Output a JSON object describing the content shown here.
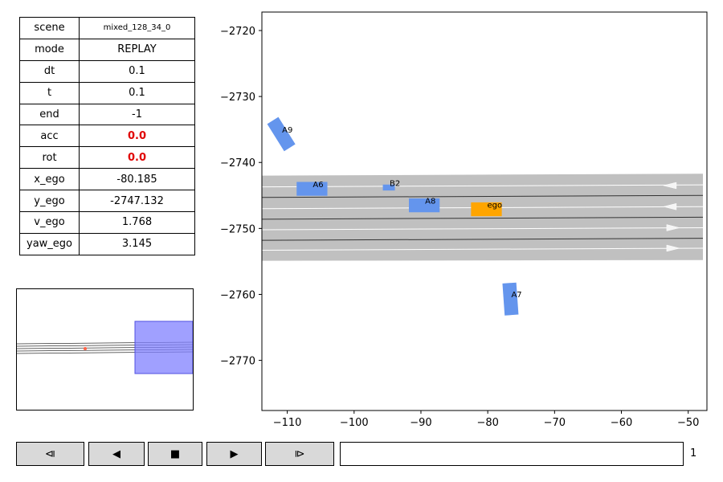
{
  "info_table": [
    {
      "key": "scene",
      "value": "mixed_128_34_0",
      "style": "small"
    },
    {
      "key": "mode",
      "value": "REPLAY",
      "style": ""
    },
    {
      "key": "dt",
      "value": "0.1",
      "style": ""
    },
    {
      "key": "t",
      "value": "0.1",
      "style": ""
    },
    {
      "key": "end",
      "value": "-1",
      "style": ""
    },
    {
      "key": "acc",
      "value": "0.0",
      "style": "red"
    },
    {
      "key": "rot",
      "value": "0.0",
      "style": "red"
    },
    {
      "key": "x_ego",
      "value": "-80.185",
      "style": ""
    },
    {
      "key": "y_ego",
      "value": "-2747.132",
      "style": ""
    },
    {
      "key": "v_ego",
      "value": "1.768",
      "style": ""
    },
    {
      "key": "yaw_ego",
      "value": "3.145",
      "style": ""
    }
  ],
  "plot": {
    "xlim": [
      -113.8,
      -47.2
    ],
    "ylim": [
      -2717.2,
      -2777.6
    ],
    "x_ticks": [
      -110,
      -100,
      -90,
      -80,
      -70,
      -60,
      -50
    ],
    "y_ticks": [
      -2720,
      -2730,
      -2740,
      -2750,
      -2760,
      -2770
    ],
    "road": {
      "top_left": -2742.0,
      "top_right": -2741.7,
      "bottom_left": -2754.9,
      "bottom_right": -2754.8
    },
    "lane_lines": [
      {
        "y_left": -2745.3,
        "y_right": -2745.0,
        "color": "#333333"
      },
      {
        "y_left": -2748.6,
        "y_right": -2748.3,
        "color": "#333333"
      },
      {
        "y_left": -2751.8,
        "y_right": -2751.5,
        "color": "#333333"
      },
      {
        "y_left": -2743.7,
        "y_right": -2743.4,
        "color": "#ffffff"
      },
      {
        "y_left": -2747.0,
        "y_right": -2746.7,
        "color": "#ffffff"
      },
      {
        "y_left": -2750.2,
        "y_right": -2749.9,
        "color": "#ffffff"
      },
      {
        "y_left": -2753.3,
        "y_right": -2753.0,
        "color": "#ffffff"
      }
    ],
    "lane_arrows": [
      {
        "x": -52.5,
        "y": -2743.5,
        "dir": "left"
      },
      {
        "x": -52.5,
        "y": -2746.7,
        "dir": "left"
      },
      {
        "x": -52.5,
        "y": -2749.9,
        "dir": "right"
      },
      {
        "x": -52.5,
        "y": -2753.0,
        "dir": "right"
      }
    ],
    "vehicles": [
      {
        "label": "A9",
        "x": -110.9,
        "y": -2735.7,
        "length": 4.8,
        "width": 2.0,
        "angle_deg": 58,
        "color": "#6495ed"
      },
      {
        "label": "A6",
        "x": -106.3,
        "y": -2744.0,
        "length": 4.6,
        "width": 2.1,
        "angle_deg": 0,
        "color": "#6495ed"
      },
      {
        "label": "B2",
        "x": -94.8,
        "y": -2743.8,
        "length": 1.8,
        "width": 0.9,
        "angle_deg": 0,
        "color": "#6495ed"
      },
      {
        "label": "A8",
        "x": -89.5,
        "y": -2746.5,
        "length": 4.6,
        "width": 2.1,
        "angle_deg": 0,
        "color": "#6495ed"
      },
      {
        "label": "ego",
        "x": -80.2,
        "y": -2747.1,
        "length": 4.6,
        "width": 2.1,
        "angle_deg": 0,
        "color": "#ffa500"
      },
      {
        "label": "A7",
        "x": -76.6,
        "y": -2760.7,
        "length": 4.8,
        "width": 2.1,
        "angle_deg": 86,
        "color": "#6495ed"
      }
    ]
  },
  "controls": {
    "buttons": [
      {
        "name": "step-back-button",
        "glyph": "⧏"
      },
      {
        "name": "play-backward-button",
        "glyph": "◀"
      },
      {
        "name": "stop-button",
        "glyph": "■"
      },
      {
        "name": "play-forward-button",
        "glyph": "▶"
      },
      {
        "name": "step-forward-button",
        "glyph": "⧐"
      }
    ],
    "slider_value": "1"
  },
  "colors": {
    "road": "#c0c0c0",
    "minimap_window": "#8080ff",
    "minimap_ego": "#ff6347"
  }
}
